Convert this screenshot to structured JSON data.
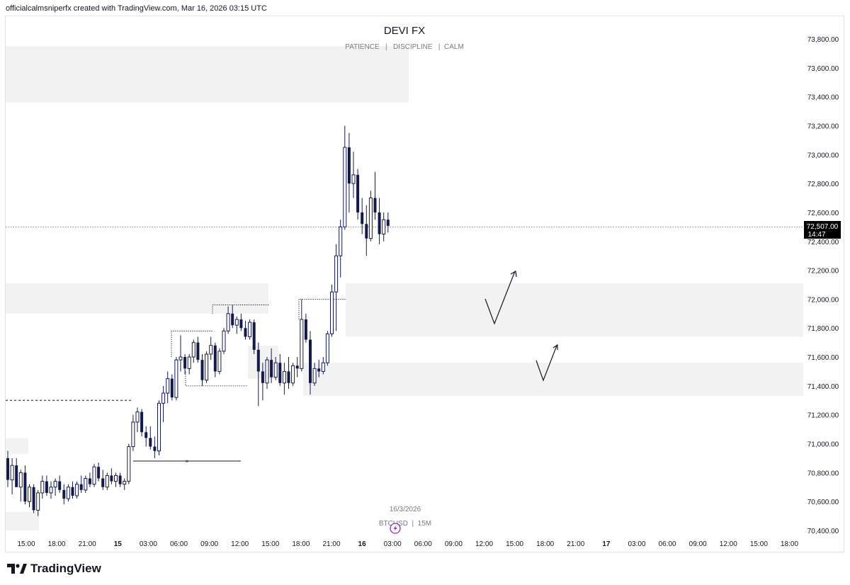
{
  "header": {
    "attribution": "officialcalmsniperfx created with TradingView.com, Mar 16, 2026 03:15 UTC"
  },
  "watermark": {
    "title": "DEVI FX",
    "subtitle": "PATIENCE   |   DISCIPLINE   |  CALM",
    "date": "16/3/2026",
    "symbol": "BTCUSD  |  15M"
  },
  "price_label": {
    "price": "72,507.00",
    "countdown": "14:47"
  },
  "footer": {
    "brand": "TradingView"
  },
  "colors": {
    "candle": "#131a4a",
    "zone": "#f2f2f2",
    "grid_text": "#131722",
    "price_tag_bg": "#000000",
    "watermark_text": "#787b86",
    "watermark_icon": "#9c27b0"
  },
  "chart_data": {
    "type": "candlestick",
    "symbol": "BTCUSD",
    "timeframe": "15M",
    "y_axis": {
      "ticks": [
        70400,
        70600,
        70800,
        71000,
        71200,
        71400,
        71600,
        71800,
        72000,
        72200,
        72400,
        72600,
        72800,
        73000,
        73200,
        73400,
        73600,
        73800
      ],
      "tick_labels": [
        "70,400.00",
        "70,600.00",
        "70,800.00",
        "71,000.00",
        "71,200.00",
        "71,400.00",
        "71,600.00",
        "71,800.00",
        "72,000.00",
        "72,200.00",
        "72,400.00",
        "72,600.00",
        "72,800.00",
        "73,000.00",
        "73,200.00",
        "73,400.00",
        "73,600.00",
        "73,800.00"
      ],
      "range": [
        70320,
        73920
      ]
    },
    "x_axis": {
      "tick_labels": [
        "15:00",
        "18:00",
        "21:00",
        "15",
        "03:00",
        "06:00",
        "09:00",
        "12:00",
        "15:00",
        "18:00",
        "21:00",
        "16",
        "03:00",
        "06:00",
        "09:00",
        "12:00",
        "15:00",
        "18:00",
        "21:00",
        "17",
        "03:00",
        "06:00",
        "09:00",
        "12:00",
        "15:00",
        "18:00"
      ],
      "bold": [
        "15",
        "16",
        "17"
      ]
    },
    "last_price": 72507,
    "candles": [
      [
        70900,
        70950,
        70700,
        70750
      ],
      [
        70750,
        70900,
        70650,
        70850
      ],
      [
        70850,
        70900,
        70700,
        70700
      ],
      [
        70700,
        70820,
        70600,
        70800
      ],
      [
        70800,
        70850,
        70580,
        70600
      ],
      [
        70600,
        70720,
        70560,
        70700
      ],
      [
        70700,
        70720,
        70520,
        70540
      ],
      [
        70540,
        70680,
        70500,
        70660
      ],
      [
        70660,
        70780,
        70620,
        70740
      ],
      [
        70740,
        70780,
        70640,
        70660
      ],
      [
        70660,
        70740,
        70620,
        70700
      ],
      [
        70700,
        70760,
        70640,
        70740
      ],
      [
        70740,
        70780,
        70660,
        70680
      ],
      [
        70680,
        70720,
        70580,
        70620
      ],
      [
        70620,
        70720,
        70600,
        70700
      ],
      [
        70700,
        70740,
        70620,
        70640
      ],
      [
        70640,
        70740,
        70620,
        70720
      ],
      [
        70720,
        70780,
        70660,
        70680
      ],
      [
        70680,
        70780,
        70660,
        70760
      ],
      [
        70760,
        70800,
        70700,
        70720
      ],
      [
        70720,
        70860,
        70700,
        70840
      ],
      [
        70840,
        70870,
        70740,
        70760
      ],
      [
        70760,
        70820,
        70680,
        70700
      ],
      [
        70700,
        70800,
        70680,
        70780
      ],
      [
        70780,
        70830,
        70720,
        70740
      ],
      [
        70740,
        70800,
        70700,
        70780
      ],
      [
        70780,
        70800,
        70700,
        70720
      ],
      [
        70720,
        70760,
        70680,
        70740
      ],
      [
        70740,
        71000,
        70720,
        70980
      ],
      [
        70980,
        71200,
        70950,
        71150
      ],
      [
        71150,
        71250,
        71080,
        71220
      ],
      [
        71220,
        71240,
        71050,
        71080
      ],
      [
        71080,
        71120,
        70980,
        71040
      ],
      [
        71040,
        71120,
        70960,
        70980
      ],
      [
        70980,
        71050,
        70900,
        70950
      ],
      [
        70950,
        71300,
        70920,
        71280
      ],
      [
        71280,
        71400,
        71150,
        71350
      ],
      [
        71350,
        71500,
        71280,
        71450
      ],
      [
        71450,
        71480,
        71300,
        71320
      ],
      [
        71320,
        71600,
        71300,
        71580
      ],
      [
        71580,
        71750,
        71500,
        71600
      ],
      [
        71600,
        71620,
        71480,
        71520
      ],
      [
        71520,
        71620,
        71480,
        71600
      ],
      [
        71600,
        71720,
        71560,
        71700
      ],
      [
        71700,
        71740,
        71560,
        71580
      ],
      [
        71580,
        71620,
        71400,
        71440
      ],
      [
        71440,
        71640,
        71420,
        71620
      ],
      [
        71620,
        71740,
        71580,
        71680
      ],
      [
        71680,
        71700,
        71460,
        71500
      ],
      [
        71500,
        71660,
        71480,
        71640
      ],
      [
        71640,
        71800,
        71620,
        71780
      ],
      [
        71780,
        71950,
        71760,
        71900
      ],
      [
        71900,
        71960,
        71800,
        71820
      ],
      [
        71820,
        71880,
        71760,
        71860
      ],
      [
        71860,
        71900,
        71780,
        71800
      ],
      [
        71800,
        71850,
        71720,
        71740
      ],
      [
        71740,
        71860,
        71720,
        71840
      ],
      [
        71840,
        71860,
        71620,
        71650
      ],
      [
        71650,
        71700,
        71260,
        71500
      ],
      [
        71500,
        71560,
        71300,
        71420
      ],
      [
        71420,
        71600,
        71380,
        71580
      ],
      [
        71580,
        71660,
        71420,
        71460
      ],
      [
        71460,
        71600,
        71440,
        71560
      ],
      [
        71560,
        71620,
        71400,
        71420
      ],
      [
        71420,
        71560,
        71340,
        71500
      ],
      [
        71500,
        71600,
        71380,
        71420
      ],
      [
        71420,
        71560,
        71400,
        71540
      ],
      [
        71540,
        71600,
        71460,
        71520
      ],
      [
        71520,
        72000,
        71500,
        71860
      ],
      [
        71860,
        71900,
        71700,
        71720
      ],
      [
        71720,
        71780,
        71340,
        71420
      ],
      [
        71420,
        71560,
        71400,
        71520
      ],
      [
        71520,
        71580,
        71460,
        71500
      ],
      [
        71500,
        71600,
        71480,
        71560
      ],
      [
        71560,
        71780,
        71540,
        71760
      ],
      [
        71760,
        72100,
        71740,
        72050
      ],
      [
        72050,
        72380,
        71780,
        72300
      ],
      [
        72300,
        72550,
        72150,
        72500
      ],
      [
        72500,
        73200,
        72480,
        73050
      ],
      [
        73050,
        73150,
        72600,
        72800
      ],
      [
        72800,
        73020,
        72700,
        72860
      ],
      [
        72860,
        72900,
        72550,
        72600
      ],
      [
        72600,
        72700,
        72450,
        72520
      ],
      [
        72520,
        72650,
        72300,
        72420
      ],
      [
        72420,
        72750,
        72400,
        72700
      ],
      [
        72700,
        72880,
        72550,
        72600
      ],
      [
        72600,
        72700,
        72380,
        72450
      ],
      [
        72450,
        72600,
        72400,
        72550
      ],
      [
        72550,
        72600,
        72460,
        72507
      ]
    ]
  }
}
